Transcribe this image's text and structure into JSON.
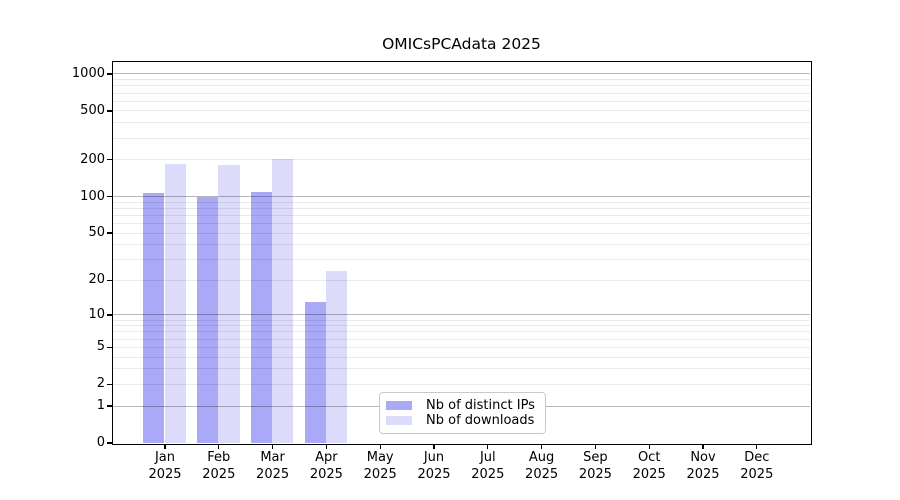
{
  "chart_data": {
    "type": "bar",
    "title": "OMICsPCAdata 2025",
    "categories": [
      "Jan 2025",
      "Feb 2025",
      "Mar 2025",
      "Apr 2025",
      "May 2025",
      "Jun 2025",
      "Jul 2025",
      "Aug 2025",
      "Sep 2025",
      "Oct 2025",
      "Nov 2025",
      "Dec 2025"
    ],
    "series": [
      {
        "name": "Nb of distinct IPs",
        "color": "#a9a9f7",
        "values": [
          106,
          98,
          108,
          13,
          null,
          null,
          null,
          null,
          null,
          null,
          null,
          null
        ]
      },
      {
        "name": "Nb of downloads",
        "color": "#dcdcfa",
        "values": [
          184,
          178,
          202,
          24,
          null,
          null,
          null,
          null,
          null,
          null,
          null,
          null
        ]
      }
    ],
    "yscale": "log1p",
    "ylim": [
      0,
      1250
    ],
    "yticks": [
      1000,
      500,
      200,
      100,
      50,
      20,
      10,
      5,
      2,
      1,
      0
    ],
    "grid": true,
    "legend_position": "lower center",
    "colors": {
      "axis": "#000000",
      "grid_major": "#c2c2c2",
      "grid_minor": "#eaeaea",
      "background": "#ffffff"
    }
  }
}
